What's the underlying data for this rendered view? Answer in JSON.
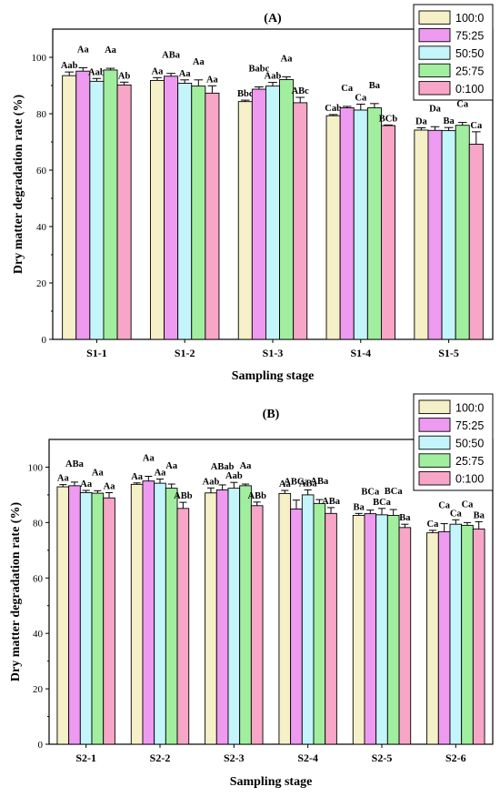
{
  "chart_data": [
    {
      "type": "bar",
      "title": "(A)",
      "xlabel": "Sampling stage",
      "ylabel": "Dry matter degradation rate (%)",
      "ylim": [
        0,
        110
      ],
      "yticks": [
        0,
        20,
        40,
        60,
        80,
        100
      ],
      "legend_position": "top-right",
      "categories": [
        "S1-1",
        "S1-2",
        "S1-3",
        "S1-4",
        "S1-5"
      ],
      "series": [
        {
          "name": "100:0",
          "color": "#f6f0c8",
          "values": [
            93.5,
            91.8,
            84.3,
            79.3,
            74.2
          ],
          "errors": [
            1.3,
            1.0,
            0.5,
            0.4,
            0.8
          ],
          "labels": [
            "Aab",
            "Aa",
            "Bbc",
            "Cab",
            "Da"
          ]
        },
        {
          "name": "75:25",
          "color": "#ee9af0",
          "values": [
            95.1,
            93.3,
            88.7,
            82.1,
            74.1
          ],
          "errors": [
            1.2,
            1.0,
            0.8,
            0.5,
            1.3
          ],
          "labels": [
            "Aa",
            "ABa",
            "Babc",
            "Ca",
            "Da"
          ]
        },
        {
          "name": "50:50",
          "color": "#c3f5fa",
          "values": [
            91.5,
            90.8,
            89.8,
            81.3,
            74.0
          ],
          "errors": [
            1.0,
            1.2,
            1.3,
            2.1,
            1.1
          ],
          "labels": [
            "Aab",
            "Aa",
            "Aab",
            "Ca",
            "Ba"
          ]
        },
        {
          "name": "25:75",
          "color": "#a2ee9f",
          "values": [
            95.5,
            89.8,
            92.1,
            82.1,
            75.9
          ],
          "errors": [
            0.6,
            2.2,
            1.0,
            1.5,
            1.0
          ],
          "labels": [
            "Aa",
            "Aa",
            "Aa",
            "Ba",
            "Ca"
          ]
        },
        {
          "name": "0:100",
          "color": "#f8a6c8",
          "values": [
            90.2,
            87.3,
            83.9,
            75.8,
            69.2
          ],
          "errors": [
            1.0,
            2.6,
            1.9,
            0.2,
            4.4
          ],
          "labels": [
            "Ab",
            "Aa",
            "ABc",
            "BCb",
            "Ca"
          ]
        }
      ]
    },
    {
      "type": "bar",
      "title": "(B)",
      "xlabel": "Sampling stage",
      "ylabel": "Dry matter degradation rate (%)",
      "ylim": [
        0,
        110
      ],
      "yticks": [
        0,
        20,
        40,
        60,
        80,
        100
      ],
      "legend_position": "top-right",
      "categories": [
        "S2-1",
        "S2-2",
        "S2-3",
        "S2-4",
        "S2-5",
        "S2-6"
      ],
      "series": [
        {
          "name": "100:0",
          "color": "#f6f0c8",
          "values": [
            92.9,
            93.8,
            90.7,
            90.5,
            82.6,
            76.3
          ],
          "errors": [
            0.8,
            0.5,
            1.8,
            1.1,
            0.7,
            0.9
          ],
          "labels": [
            "Aa",
            "Aa",
            "Aab",
            "Aa",
            "Ba",
            "Ca"
          ]
        },
        {
          "name": "75:25",
          "color": "#ee9af0",
          "values": [
            93.3,
            95.0,
            91.8,
            84.9,
            83.2,
            76.7
          ],
          "errors": [
            1.3,
            1.7,
            1.8,
            3.2,
            1.3,
            2.9
          ],
          "labels": [
            "ABa",
            "Aa",
            "ABab",
            "ABCa",
            "BCa",
            "Ca"
          ]
        },
        {
          "name": "50:50",
          "color": "#c3f5fa",
          "values": [
            90.8,
            94.2,
            92.4,
            90.0,
            82.8,
            79.4
          ],
          "errors": [
            0.8,
            1.5,
            2.1,
            1.8,
            2.3,
            1.6
          ],
          "labels": [
            "Aa",
            "Aa",
            "Aab",
            "ABa",
            "BCa",
            "Ca"
          ]
        },
        {
          "name": "25:75",
          "color": "#a2ee9f",
          "values": [
            90.6,
            92.4,
            93.3,
            86.9,
            82.6,
            79.0
          ],
          "errors": [
            0.9,
            1.5,
            0.6,
            1.4,
            2.1,
            1.0
          ],
          "labels": [
            "Aa",
            "Aa",
            "Aa",
            "ABa",
            "BCa",
            "Ca"
          ]
        },
        {
          "name": "0:100",
          "color": "#f8a6c8",
          "values": [
            88.9,
            85.1,
            86.1,
            83.3,
            78.2,
            77.7
          ],
          "errors": [
            1.9,
            2.2,
            1.3,
            2.1,
            1.2,
            2.6
          ],
          "labels": [
            "Aa",
            "ABb",
            "ABb",
            "ABa",
            "Ba",
            "Ba"
          ]
        }
      ]
    }
  ]
}
